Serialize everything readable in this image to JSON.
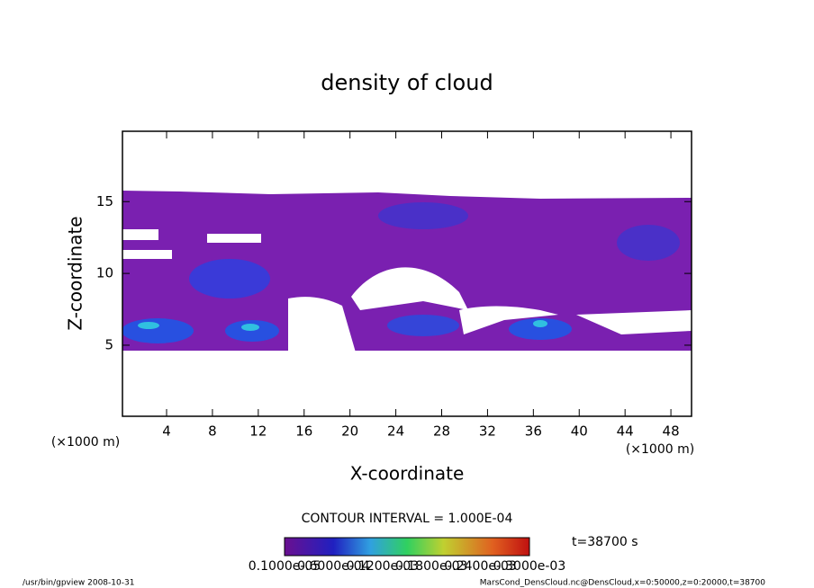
{
  "chart_data": {
    "type": "contour",
    "title": "density of cloud",
    "xlabel": "X-coordinate",
    "ylabel": "Z-coordinate",
    "xunit": "(×1000 m)",
    "xlim": [
      0.15,
      49.8
    ],
    "ylim": [
      0.05,
      19.9
    ],
    "xticks": [
      4,
      8,
      12,
      16,
      20,
      24,
      28,
      32,
      36,
      40,
      44,
      48
    ],
    "yticks": [
      5,
      10,
      15
    ],
    "contour_interval": "CONTOUR INTERVAL = 1.000E-04",
    "time": "t=38700 s",
    "colorbar_labels": [
      "0.1000e-05",
      "0.6000e-04",
      "0.1200e-03",
      "0.1800e-03",
      "0.2400e-03",
      "0.3000e-03"
    ],
    "footer_left": "/usr/bin/gpview   2008-10-31",
    "footer_right": "MarsCond_DensCloud.nc@DensCloud,x=0:50000,z=0:20000,t=38700"
  }
}
